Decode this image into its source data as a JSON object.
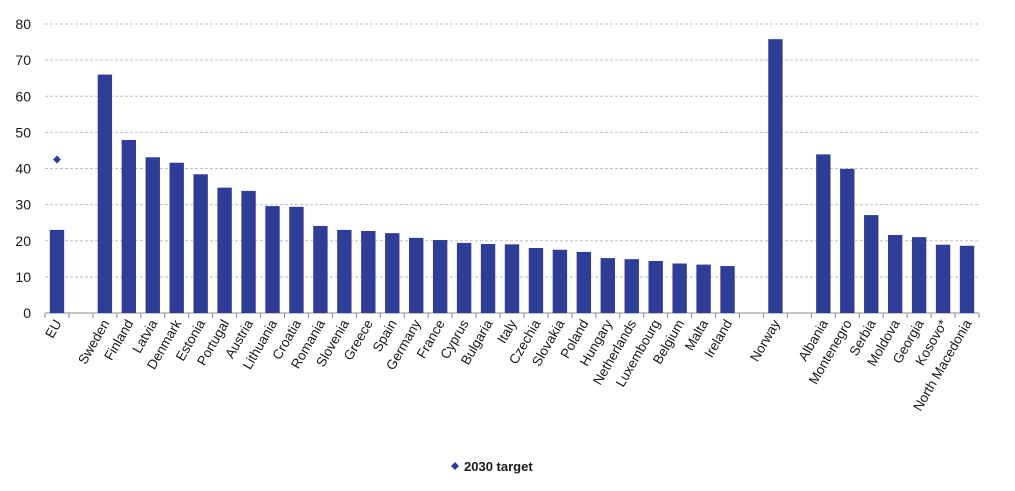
{
  "chart_data": {
    "type": "bar",
    "categories": [
      "EU",
      "",
      "Sweden",
      "Finland",
      "Latvia",
      "Denmark",
      "Estonia",
      "Portugal",
      "Austria",
      "Lithuania",
      "Croatia",
      "Romania",
      "Slovenia",
      "Greece",
      "Spain",
      "Germany",
      "France",
      "Cyprus",
      "Bulgaria",
      "Italy",
      "Czechia",
      "Slovakia",
      "Poland",
      "Hungary",
      "Netherlands",
      "Luxembourg",
      "Belgium",
      "Malta",
      "Ireland",
      "",
      "Norway",
      "",
      "Albania",
      "Montenegro",
      "Serbia",
      "Moldova",
      "Georgia",
      "Kosovo*",
      "North Macedonia"
    ],
    "series": [
      {
        "values": [
          23.0,
          null,
          66.0,
          47.9,
          43.1,
          41.6,
          38.4,
          34.7,
          33.8,
          29.6,
          29.4,
          24.1,
          23.0,
          22.7,
          22.1,
          20.8,
          20.2,
          19.4,
          19.1,
          19.0,
          18.0,
          17.5,
          16.9,
          15.2,
          14.9,
          14.4,
          13.7,
          13.4,
          13.0,
          null,
          75.8,
          null,
          43.9,
          39.9,
          27.1,
          21.6,
          21.0,
          18.9,
          18.6
        ]
      },
      {
        "name": "2030 target",
        "type": "scatter",
        "values": [
          42.5,
          null,
          null,
          null,
          null,
          null,
          null,
          null,
          null,
          null,
          null,
          null,
          null,
          null,
          null,
          null,
          null,
          null,
          null,
          null,
          null,
          null,
          null,
          null,
          null,
          null,
          null,
          null,
          null,
          null,
          null,
          null,
          null,
          null,
          null,
          null,
          null,
          null,
          null
        ]
      }
    ],
    "ylim": [
      0,
      80
    ],
    "yticks": [
      0,
      10,
      20,
      30,
      40,
      50,
      60,
      70,
      80
    ],
    "grid": true,
    "legend": "bottom",
    "colors": {
      "bar": "#2e3d98",
      "target": "#2e3d98",
      "grid": "#bfbfbf",
      "axis": "#8c8c8c"
    }
  }
}
